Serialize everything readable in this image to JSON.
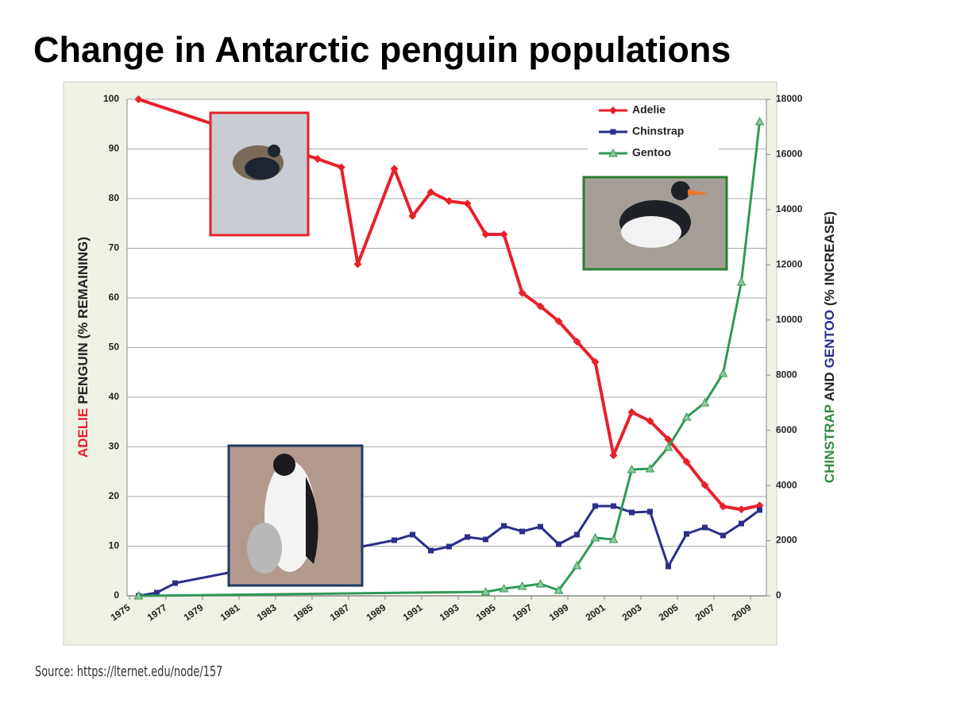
{
  "chart_data": {
    "type": "line",
    "title": "Change in Antarctic penguin populations",
    "ylabel": [
      "ADELIE",
      "PENGUIN (% REMAINING)"
    ],
    "ylabel_colors": [
      "#e8202a",
      "#222222"
    ],
    "y2label": [
      "CHINSTRAP",
      "AND",
      "GENTOO",
      "(% INCREASE)"
    ],
    "y2label_colors": [
      "#2e8b3a",
      "#222222",
      "#2b2e8a",
      "#222222"
    ],
    "xlim": [
      1975,
      2010
    ],
    "xticks": [
      1975,
      1977,
      1979,
      1981,
      1983,
      1985,
      1987,
      1989,
      1991,
      1993,
      1995,
      1997,
      1999,
      2001,
      2003,
      2005,
      2007,
      2009
    ],
    "ylim": [
      0,
      100
    ],
    "yticks": [
      0,
      10,
      20,
      30,
      40,
      50,
      60,
      70,
      80,
      90,
      100
    ],
    "y2lim": [
      0,
      18000
    ],
    "y2ticks": [
      0,
      2000,
      4000,
      6000,
      8000,
      10000,
      12000,
      14000,
      16000,
      18000
    ],
    "grid": true,
    "legend": "upper right",
    "series": [
      {
        "name": "Adelie",
        "color": "#e8202a",
        "marker": "diamond",
        "axis": "y",
        "x": [
          1975.5,
          1985.3,
          1986.6,
          1987.5,
          1989.5,
          1990.5,
          1991.5,
          1992.5,
          1993.5,
          1994.5,
          1995.5,
          1996.5,
          1997.5,
          1998.5,
          1999.5,
          2000.5,
          2001.5,
          2002.5,
          2003.5,
          2004.5,
          2005.5,
          2006.5,
          2007.5,
          2008.5,
          2009.5
        ],
        "values": [
          100,
          88,
          86.3,
          66.8,
          86,
          76.5,
          81.3,
          79.5,
          79,
          72.8,
          72.8,
          61,
          58.3,
          55.3,
          51.2,
          47.1,
          28.3,
          37,
          35.2,
          31.5,
          27,
          22.3,
          18,
          17.4,
          18.2
        ]
      },
      {
        "name": "Chinstrap",
        "color": "#2b2e8a",
        "marker": "square",
        "axis": "y2",
        "x": [
          1975.5,
          1976.5,
          1977.5,
          1989.5,
          1990.5,
          1991.5,
          1992.5,
          1993.5,
          1994.5,
          1995.5,
          1996.5,
          1997.5,
          1998.5,
          1999.5,
          2000.5,
          2001.5,
          2002.5,
          2003.5,
          2004.5,
          2005.5,
          2006.5,
          2007.5,
          2008.5,
          2009.5
        ],
        "values": [
          0,
          115,
          460,
          2016,
          2218,
          1642,
          1786,
          2131,
          2045,
          2534,
          2333,
          2506,
          1872,
          2218,
          3254,
          3254,
          3024,
          3053,
          1066,
          2246,
          2477,
          2189,
          2621,
          3110
        ]
      },
      {
        "name": "Gentoo",
        "color": "#2e9a55",
        "marker": "triangle",
        "axis": "y2",
        "x": [
          1975.5,
          1994.5,
          1995.5,
          1996.5,
          1997.5,
          1998.5,
          1999.5,
          2000.5,
          2001.5,
          2002.5,
          2003.5,
          2004.5,
          2005.5,
          2006.5,
          2007.5,
          2008.5,
          2009.5
        ],
        "values": [
          0,
          144,
          259,
          346,
          432,
          202,
          1094,
          2102,
          2045,
          4579,
          4608,
          5386,
          6480,
          6998,
          8064,
          11376,
          17194
        ]
      }
    ],
    "source": "Source: https://lternet.edu/node/157"
  }
}
